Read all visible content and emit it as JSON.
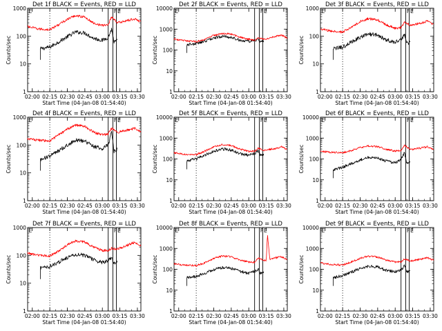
{
  "figure": {
    "background": "#ffffff",
    "colors": {
      "events": "#000000",
      "lld": "#ff0000",
      "axes": "#000000"
    }
  },
  "chart_data": [
    {
      "type": "line",
      "scale": "log",
      "title": "Det 1f BLACK = Events, RED = LLD",
      "xlabel": "Start Time (04-Jan-08 01:54:40)",
      "ylabel": "Counts/sec",
      "x_ticks": [
        "02:00",
        "02:15",
        "02:30",
        "02:45",
        "03:00",
        "03:15",
        "03:30"
      ],
      "y_ticks": [
        "1",
        "10",
        "100",
        "1000"
      ],
      "ylim": [
        1,
        1000
      ],
      "xlim": [
        "01:56",
        "03:33"
      ],
      "dotted_line": "02:15",
      "markers": [
        "03:05",
        "03:09",
        "03:12"
      ],
      "marker_labels": [
        "F",
        "E"
      ],
      "lld_start": "01:56",
      "events_start": "02:07",
      "series": [
        {
          "name": "BLACK = Events",
          "color": "#000000",
          "x": [
            "02:07",
            "02:15",
            "02:22",
            "02:30",
            "02:37",
            "02:45",
            "02:52",
            "03:00",
            "03:05",
            "03:08",
            "03:10",
            "03:13"
          ],
          "values": [
            35,
            40,
            60,
            95,
            140,
            130,
            85,
            70,
            90,
            180,
            60,
            70
          ]
        },
        {
          "name": "RED = LLD",
          "color": "#ff0000",
          "x": [
            "01:56",
            "02:05",
            "02:15",
            "02:22",
            "02:30",
            "02:37",
            "02:45",
            "02:52",
            "03:00",
            "03:05",
            "03:08",
            "03:13",
            "03:20",
            "03:28",
            "03:33"
          ],
          "values": [
            220,
            180,
            170,
            250,
            400,
            550,
            480,
            300,
            240,
            260,
            500,
            300,
            350,
            420,
            320
          ]
        }
      ]
    },
    {
      "type": "line",
      "scale": "log",
      "title": "Det 2f BLACK = Events, RED = LLD",
      "xlabel": "Start Time (04-Jan-08 01:54:40)",
      "ylabel": "Counts/sec",
      "x_ticks": [
        "02:00",
        "02:15",
        "02:30",
        "02:45",
        "03:00",
        "03:15",
        "03:30"
      ],
      "y_ticks": [
        "1",
        "10",
        "100",
        "1000",
        "10000"
      ],
      "ylim": [
        1,
        10000
      ],
      "xlim": [
        "01:56",
        "03:33"
      ],
      "dotted_line": "02:15",
      "markers": [
        "03:05",
        "03:09",
        "03:12"
      ],
      "marker_labels": [
        "F",
        "E"
      ],
      "lld_start": "01:56",
      "events_start": "02:07",
      "series": [
        {
          "name": "BLACK = Events",
          "color": "#000000",
          "x": [
            "02:07",
            "02:15",
            "02:22",
            "02:30",
            "02:37",
            "02:45",
            "02:52",
            "03:00",
            "03:05",
            "03:08",
            "03:10",
            "03:13"
          ],
          "values": [
            180,
            200,
            260,
            380,
            450,
            400,
            300,
            250,
            300,
            320,
            240,
            260
          ]
        },
        {
          "name": "RED = LLD",
          "color": "#ff0000",
          "x": [
            "01:56",
            "02:05",
            "02:15",
            "02:22",
            "02:30",
            "02:37",
            "02:45",
            "02:52",
            "03:00",
            "03:05",
            "03:08",
            "03:13",
            "03:20",
            "03:28",
            "03:33"
          ],
          "values": [
            330,
            280,
            250,
            320,
            500,
            620,
            580,
            420,
            330,
            300,
            380,
            330,
            400,
            520,
            360
          ]
        }
      ]
    },
    {
      "type": "line",
      "scale": "log",
      "title": "Det 3f BLACK = Events, RED = LLD",
      "xlabel": "Start Time (04-Jan-08 01:54:40)",
      "ylabel": "Counts/sec",
      "x_ticks": [
        "02:00",
        "02:15",
        "02:30",
        "02:45",
        "03:00",
        "03:15",
        "03:30"
      ],
      "y_ticks": [
        "1",
        "10",
        "100",
        "1000"
      ],
      "ylim": [
        1,
        1000
      ],
      "xlim": [
        "01:56",
        "03:33"
      ],
      "dotted_line": "02:15",
      "markers": [
        "03:05",
        "03:09",
        "03:12"
      ],
      "marker_labels": [
        "F",
        "E"
      ],
      "lld_start": "01:56",
      "events_start": "02:07",
      "series": [
        {
          "name": "BLACK = Events",
          "color": "#000000",
          "x": [
            "02:07",
            "02:15",
            "02:22",
            "02:30",
            "02:37",
            "02:45",
            "02:52",
            "03:00",
            "03:05",
            "03:08",
            "03:10",
            "03:13"
          ],
          "values": [
            35,
            40,
            60,
            90,
            120,
            110,
            75,
            60,
            80,
            110,
            55,
            60
          ]
        },
        {
          "name": "RED = LLD",
          "color": "#ff0000",
          "x": [
            "01:56",
            "02:05",
            "02:15",
            "02:22",
            "02:30",
            "02:37",
            "02:45",
            "02:52",
            "03:00",
            "03:05",
            "03:08",
            "03:13",
            "03:20",
            "03:28",
            "03:33"
          ],
          "values": [
            180,
            150,
            140,
            200,
            330,
            420,
            380,
            260,
            190,
            200,
            330,
            240,
            280,
            350,
            260
          ]
        }
      ]
    },
    {
      "type": "line",
      "scale": "log",
      "title": "Det 4f BLACK = Events, RED = LLD",
      "xlabel": "Start Time (04-Jan-08 01:54:40)",
      "ylabel": "Counts/sec",
      "x_ticks": [
        "02:00",
        "02:15",
        "02:30",
        "02:45",
        "03:00",
        "03:15",
        "03:30"
      ],
      "y_ticks": [
        "1",
        "10",
        "100",
        "1000"
      ],
      "ylim": [
        1,
        1000
      ],
      "xlim": [
        "01:56",
        "03:33"
      ],
      "dotted_line": "02:15",
      "markers": [
        "03:05",
        "03:09",
        "03:12"
      ],
      "marker_labels": [
        "F",
        "E"
      ],
      "lld_start": "01:56",
      "events_start": "02:07",
      "series": [
        {
          "name": "BLACK = Events",
          "color": "#000000",
          "x": [
            "02:07",
            "02:15",
            "02:22",
            "02:30",
            "02:37",
            "02:45",
            "02:52",
            "03:00",
            "03:05",
            "03:08",
            "03:10",
            "03:13"
          ],
          "values": [
            30,
            40,
            60,
            100,
            150,
            140,
            90,
            75,
            100,
            300,
            60,
            70
          ]
        },
        {
          "name": "RED = LLD",
          "color": "#ff0000",
          "x": [
            "01:56",
            "02:05",
            "02:15",
            "02:22",
            "02:30",
            "02:37",
            "02:45",
            "02:52",
            "03:00",
            "03:05",
            "03:08",
            "03:13",
            "03:20",
            "03:28",
            "03:33"
          ],
          "values": [
            170,
            150,
            140,
            220,
            380,
            520,
            470,
            300,
            230,
            250,
            400,
            290,
            330,
            400,
            300
          ]
        }
      ]
    },
    {
      "type": "line",
      "scale": "log",
      "title": "Det 5f BLACK = Events, RED = LLD",
      "xlabel": "Start Time (04-Jan-08 01:54:40)",
      "ylabel": "Counts/sec",
      "x_ticks": [
        "02:00",
        "02:15",
        "02:30",
        "02:45",
        "03:00",
        "03:15",
        "03:30"
      ],
      "y_ticks": [
        "1",
        "10",
        "100",
        "1000",
        "10000"
      ],
      "ylim": [
        1,
        10000
      ],
      "xlim": [
        "01:56",
        "03:33"
      ],
      "dotted_line": "02:15",
      "markers": [
        "03:05",
        "03:09",
        "03:12"
      ],
      "marker_labels": [
        "F",
        "E"
      ],
      "lld_start": "01:56",
      "events_start": "02:07",
      "series": [
        {
          "name": "BLACK = Events",
          "color": "#000000",
          "x": [
            "02:07",
            "02:15",
            "02:22",
            "02:30",
            "02:37",
            "02:45",
            "02:52",
            "03:00",
            "03:05",
            "03:08",
            "03:10",
            "03:13"
          ],
          "values": [
            80,
            100,
            150,
            230,
            300,
            270,
            180,
            150,
            180,
            260,
            150,
            160
          ]
        },
        {
          "name": "RED = LLD",
          "color": "#ff0000",
          "x": [
            "01:56",
            "02:05",
            "02:15",
            "02:22",
            "02:30",
            "02:37",
            "02:45",
            "02:52",
            "03:00",
            "03:05",
            "03:08",
            "03:13",
            "03:20",
            "03:28",
            "03:33"
          ],
          "values": [
            200,
            170,
            160,
            230,
            380,
            480,
            440,
            300,
            230,
            230,
            330,
            260,
            300,
            380,
            280
          ]
        }
      ]
    },
    {
      "type": "line",
      "scale": "log",
      "title": "Det 6f BLACK = Events, RED = LLD",
      "xlabel": "Start Time (04-Jan-08 01:54:40)",
      "ylabel": "Counts/sec",
      "x_ticks": [
        "02:00",
        "02:15",
        "02:30",
        "02:45",
        "03:00",
        "03:15",
        "03:30"
      ],
      "y_ticks": [
        "1",
        "10",
        "100",
        "1000",
        "10000"
      ],
      "ylim": [
        1,
        10000
      ],
      "xlim": [
        "01:56",
        "03:33"
      ],
      "dotted_line": "02:15",
      "markers": [
        "03:05",
        "03:09",
        "03:12"
      ],
      "marker_labels": [
        "F",
        "E"
      ],
      "lld_start": "01:56",
      "events_start": "02:07",
      "series": [
        {
          "name": "BLACK = Events",
          "color": "#000000",
          "x": [
            "02:07",
            "02:15",
            "02:22",
            "02:30",
            "02:37",
            "02:45",
            "02:52",
            "03:00",
            "03:05",
            "03:08",
            "03:10",
            "03:13"
          ],
          "values": [
            30,
            40,
            60,
            90,
            120,
            110,
            80,
            65,
            90,
            200,
            60,
            70
          ]
        },
        {
          "name": "RED = LLD",
          "color": "#ff0000",
          "x": [
            "01:56",
            "02:05",
            "02:15",
            "02:22",
            "02:30",
            "02:37",
            "02:45",
            "02:52",
            "03:00",
            "03:05",
            "03:08",
            "03:13",
            "03:20",
            "03:28",
            "03:33"
          ],
          "values": [
            230,
            210,
            200,
            250,
            350,
            420,
            390,
            290,
            240,
            260,
            450,
            280,
            320,
            380,
            290
          ]
        }
      ]
    },
    {
      "type": "line",
      "scale": "log",
      "title": "Det 7f BLACK = Events, RED = LLD",
      "xlabel": "Start Time (04-Jan-08 01:54:40)",
      "ylabel": "Counts/sec",
      "x_ticks": [
        "02:00",
        "02:15",
        "02:30",
        "02:45",
        "03:00",
        "03:15",
        "03:30"
      ],
      "y_ticks": [
        "1",
        "10",
        "100",
        "1000"
      ],
      "ylim": [
        1,
        1000
      ],
      "xlim": [
        "01:56",
        "03:33"
      ],
      "dotted_line": "02:15",
      "markers": [
        "03:05",
        "03:09",
        "03:12"
      ],
      "marker_labels": [
        "F",
        "E"
      ],
      "lld_start": "01:56",
      "events_start": "02:07",
      "series": [
        {
          "name": "BLACK = Events",
          "color": "#000000",
          "x": [
            "02:07",
            "02:15",
            "02:22",
            "02:30",
            "02:37",
            "02:45",
            "02:52",
            "03:00",
            "03:05",
            "03:08",
            "03:10",
            "03:13"
          ],
          "values": [
            35,
            40,
            55,
            85,
            110,
            100,
            70,
            55,
            65,
            80,
            50,
            55
          ]
        },
        {
          "name": "RED = LLD",
          "color": "#ff0000",
          "x": [
            "01:56",
            "02:05",
            "02:15",
            "02:22",
            "02:30",
            "02:37",
            "02:45",
            "02:52",
            "03:00",
            "03:05",
            "03:08",
            "03:13",
            "03:20",
            "03:28",
            "03:33"
          ],
          "values": [
            120,
            100,
            95,
            140,
            240,
            330,
            300,
            200,
            150,
            150,
            180,
            170,
            220,
            300,
            220
          ]
        }
      ]
    },
    {
      "type": "line",
      "scale": "log",
      "title": "Det 8f BLACK = Events, RED = LLD",
      "xlabel": "Start Time (04-Jan-08 01:54:40)",
      "ylabel": "Counts/sec",
      "x_ticks": [
        "02:00",
        "02:15",
        "02:30",
        "02:45",
        "03:00",
        "03:15",
        "03:30"
      ],
      "y_ticks": [
        "1",
        "10",
        "100",
        "1000",
        "10000"
      ],
      "ylim": [
        1,
        10000
      ],
      "xlim": [
        "01:56",
        "03:33"
      ],
      "dotted_line": "02:15",
      "markers": [
        "03:05",
        "03:09",
        "03:12"
      ],
      "marker_labels": [
        "F",
        "E"
      ],
      "lld_start": "01:56",
      "events_start": "02:07",
      "series": [
        {
          "name": "BLACK = Events",
          "color": "#000000",
          "x": [
            "02:07",
            "02:15",
            "02:22",
            "02:30",
            "02:37",
            "02:45",
            "02:52",
            "03:00",
            "03:05",
            "03:08",
            "03:10",
            "03:13"
          ],
          "values": [
            40,
            45,
            65,
            95,
            120,
            110,
            80,
            65,
            80,
            100,
            65,
            70
          ]
        },
        {
          "name": "RED = LLD",
          "color": "#ff0000",
          "x": [
            "01:56",
            "02:05",
            "02:15",
            "02:22",
            "02:30",
            "02:37",
            "02:45",
            "02:52",
            "03:00",
            "03:05",
            "03:08",
            "03:13",
            "03:15",
            "03:16",
            "03:18",
            "03:20",
            "03:28",
            "03:33"
          ],
          "values": [
            180,
            160,
            150,
            200,
            330,
            430,
            400,
            280,
            220,
            220,
            350,
            260,
            270,
            5000,
            300,
            320,
            400,
            300
          ]
        }
      ]
    },
    {
      "type": "line",
      "scale": "log",
      "title": "Det 9f BLACK = Events, RED = LLD",
      "xlabel": "Start Time (04-Jan-08 01:54:40)",
      "ylabel": "Counts/sec",
      "x_ticks": [
        "02:00",
        "02:15",
        "02:30",
        "02:45",
        "03:00",
        "03:15",
        "03:30"
      ],
      "y_ticks": [
        "1",
        "10",
        "100",
        "1000",
        "10000"
      ],
      "ylim": [
        1,
        10000
      ],
      "xlim": [
        "01:56",
        "03:33"
      ],
      "dotted_line": "02:15",
      "markers": [
        "03:05",
        "03:09",
        "03:12"
      ],
      "marker_labels": [
        "F",
        "E"
      ],
      "lld_start": "01:56",
      "events_start": "02:07",
      "series": [
        {
          "name": "BLACK = Events",
          "color": "#000000",
          "x": [
            "02:07",
            "02:15",
            "02:22",
            "02:30",
            "02:37",
            "02:45",
            "02:52",
            "03:00",
            "03:05",
            "03:08",
            "03:10",
            "03:13"
          ],
          "values": [
            40,
            50,
            70,
            110,
            140,
            130,
            90,
            75,
            90,
            160,
            75,
            80
          ]
        },
        {
          "name": "RED = LLD",
          "color": "#ff0000",
          "x": [
            "01:56",
            "02:05",
            "02:15",
            "02:22",
            "02:30",
            "02:37",
            "02:45",
            "02:52",
            "03:00",
            "03:05",
            "03:08",
            "03:13",
            "03:20",
            "03:28",
            "03:33"
          ],
          "values": [
            200,
            170,
            160,
            220,
            340,
            420,
            390,
            280,
            220,
            230,
            320,
            250,
            290,
            360,
            270
          ]
        }
      ]
    }
  ]
}
